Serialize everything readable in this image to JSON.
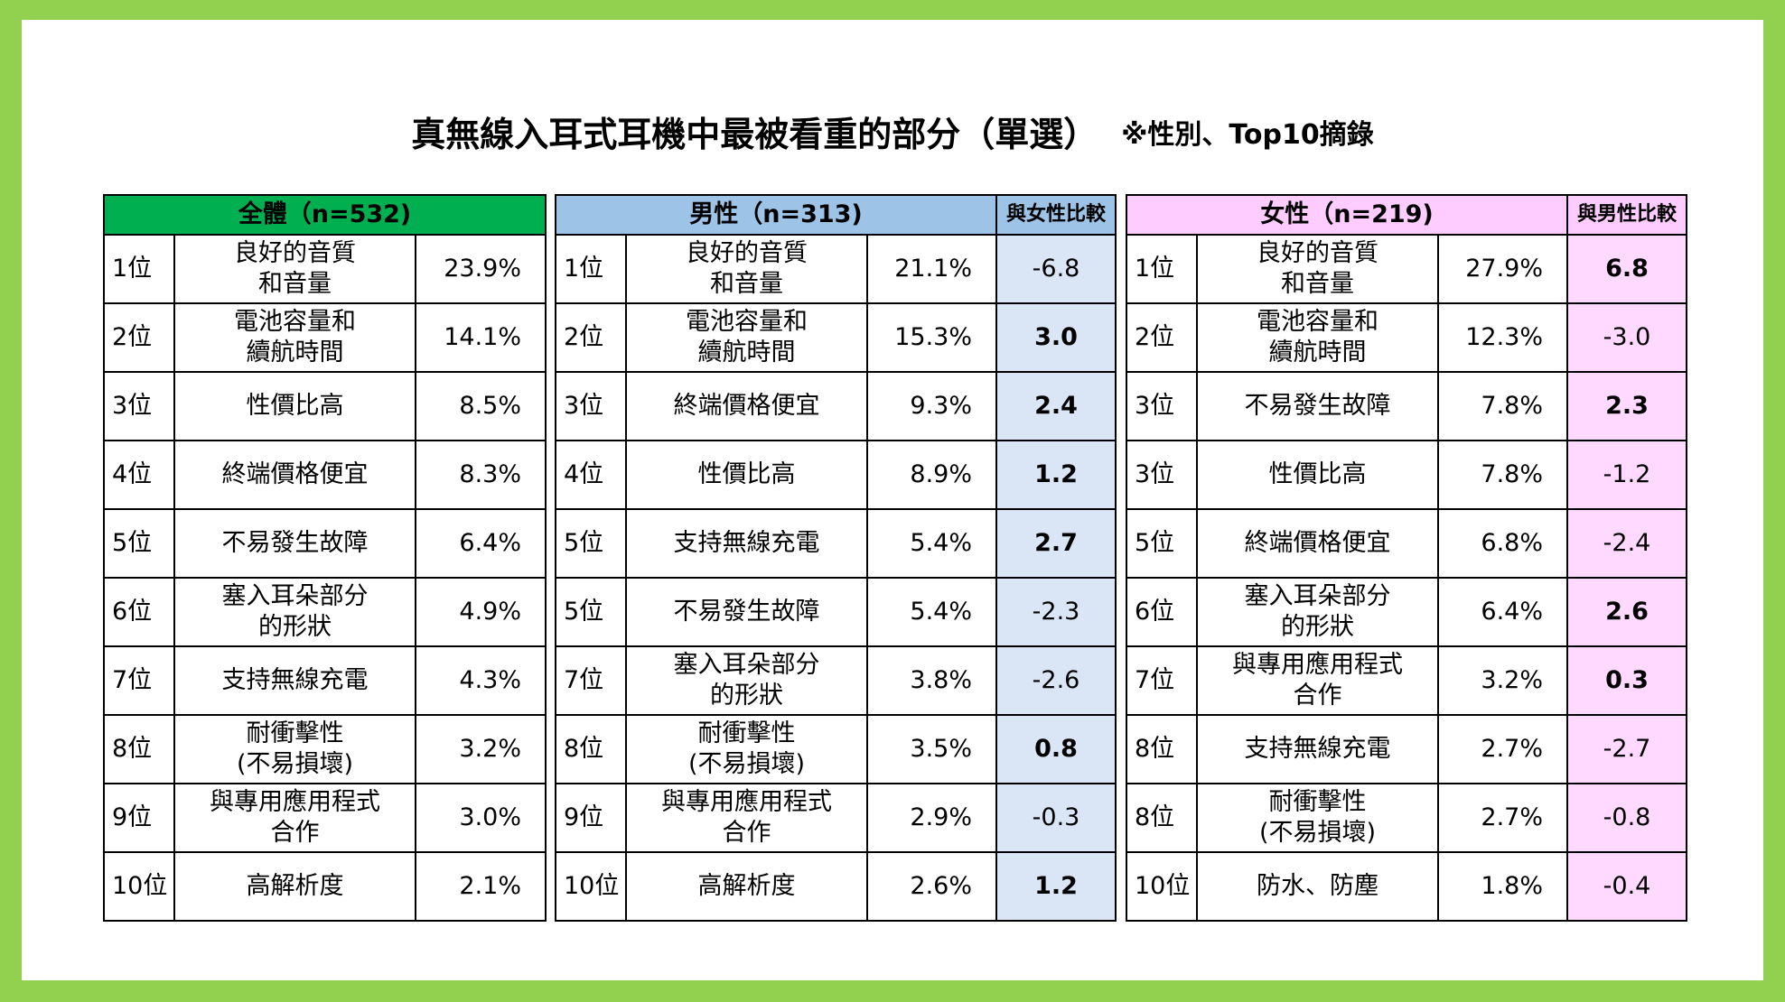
{
  "title": "真無線入耳式耳機中最被看重的部分（單選）",
  "title_note": "※性別、Top10摘錄",
  "colors": {
    "frame": "#92d050",
    "all_header": "#00b050",
    "men_header": "#9dc3e6",
    "men_diff_bg": "#dae6f5",
    "women_header": "#ffccff",
    "women_diff_bg": "#ffd9ff"
  },
  "all": {
    "header": "全體（n=532)",
    "rows": [
      {
        "rank": "1位",
        "item": [
          "良好的音質",
          "和音量"
        ],
        "pct": "23.9%"
      },
      {
        "rank": "2位",
        "item": [
          "電池容量和",
          "續航時間"
        ],
        "pct": "14.1%"
      },
      {
        "rank": "3位",
        "item": [
          "性價比高"
        ],
        "pct": "8.5%"
      },
      {
        "rank": "4位",
        "item": [
          "終端價格便宜"
        ],
        "pct": "8.3%"
      },
      {
        "rank": "5位",
        "item": [
          "不易發生故障"
        ],
        "pct": "6.4%"
      },
      {
        "rank": "6位",
        "item": [
          "塞入耳朵部分",
          "的形狀"
        ],
        "pct": "4.9%"
      },
      {
        "rank": "7位",
        "item": [
          "支持無線充電"
        ],
        "pct": "4.3%"
      },
      {
        "rank": "8位",
        "item": [
          "耐衝擊性",
          "(不易損壞)"
        ],
        "pct": "3.2%"
      },
      {
        "rank": "9位",
        "item": [
          "與專用應用程式",
          "合作"
        ],
        "pct": "3.0%"
      },
      {
        "rank": "10位",
        "item": [
          "高解析度"
        ],
        "pct": "2.1%"
      }
    ]
  },
  "men": {
    "header": "男性（n=313)",
    "compare_header": "與女性比較",
    "rows": [
      {
        "rank": "1位",
        "item": [
          "良好的音質",
          "和音量"
        ],
        "pct": "21.1%",
        "diff": "-6.8",
        "bold": false
      },
      {
        "rank": "2位",
        "item": [
          "電池容量和",
          "續航時間"
        ],
        "pct": "15.3%",
        "diff": "3.0",
        "bold": true
      },
      {
        "rank": "3位",
        "item": [
          "終端價格便宜"
        ],
        "pct": "9.3%",
        "diff": "2.4",
        "bold": true
      },
      {
        "rank": "4位",
        "item": [
          "性價比高"
        ],
        "pct": "8.9%",
        "diff": "1.2",
        "bold": true
      },
      {
        "rank": "5位",
        "item": [
          "支持無線充電"
        ],
        "pct": "5.4%",
        "diff": "2.7",
        "bold": true
      },
      {
        "rank": "5位",
        "item": [
          "不易發生故障"
        ],
        "pct": "5.4%",
        "diff": "-2.3",
        "bold": false
      },
      {
        "rank": "7位",
        "item": [
          "塞入耳朵部分",
          "的形狀"
        ],
        "pct": "3.8%",
        "diff": "-2.6",
        "bold": false
      },
      {
        "rank": "8位",
        "item": [
          "耐衝擊性",
          "(不易損壞)"
        ],
        "pct": "3.5%",
        "diff": "0.8",
        "bold": true
      },
      {
        "rank": "9位",
        "item": [
          "與專用應用程式",
          "合作"
        ],
        "pct": "2.9%",
        "diff": "-0.3",
        "bold": false
      },
      {
        "rank": "10位",
        "item": [
          "高解析度"
        ],
        "pct": "2.6%",
        "diff": "1.2",
        "bold": true
      }
    ]
  },
  "women": {
    "header": "女性（n=219)",
    "compare_header": "與男性比較",
    "rows": [
      {
        "rank": "1位",
        "item": [
          "良好的音質",
          "和音量"
        ],
        "pct": "27.9%",
        "diff": "6.8",
        "bold": true
      },
      {
        "rank": "2位",
        "item": [
          "電池容量和",
          "續航時間"
        ],
        "pct": "12.3%",
        "diff": "-3.0",
        "bold": false
      },
      {
        "rank": "3位",
        "item": [
          "不易發生故障"
        ],
        "pct": "7.8%",
        "diff": "2.3",
        "bold": true
      },
      {
        "rank": "3位",
        "item": [
          "性價比高"
        ],
        "pct": "7.8%",
        "diff": "-1.2",
        "bold": false
      },
      {
        "rank": "5位",
        "item": [
          "終端價格便宜"
        ],
        "pct": "6.8%",
        "diff": "-2.4",
        "bold": false
      },
      {
        "rank": "6位",
        "item": [
          "塞入耳朵部分",
          "的形狀"
        ],
        "pct": "6.4%",
        "diff": "2.6",
        "bold": true
      },
      {
        "rank": "7位",
        "item": [
          "與專用應用程式",
          "合作"
        ],
        "pct": "3.2%",
        "diff": "0.3",
        "bold": true
      },
      {
        "rank": "8位",
        "item": [
          "支持無線充電"
        ],
        "pct": "2.7%",
        "diff": "-2.7",
        "bold": false
      },
      {
        "rank": "8位",
        "item": [
          "耐衝擊性",
          "(不易損壞)"
        ],
        "pct": "2.7%",
        "diff": "-0.8",
        "bold": false
      },
      {
        "rank": "10位",
        "item": [
          "防水、防塵"
        ],
        "pct": "1.8%",
        "diff": "-0.4",
        "bold": false
      }
    ]
  }
}
